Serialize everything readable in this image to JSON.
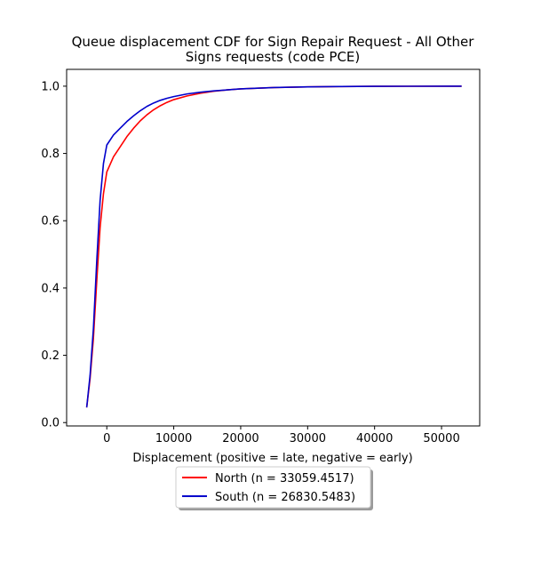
{
  "chart_data": {
    "type": "line",
    "title_lines": [
      "Queue displacement CDF for Sign Repair Request - All Other",
      "Signs  requests (code PCE)"
    ],
    "xlabel": "Displacement (positive = late, negative = early)",
    "ylabel": "",
    "xlim": [
      -6000,
      55700
    ],
    "ylim": [
      -0.01,
      1.05
    ],
    "xticks": [
      0,
      10000,
      20000,
      30000,
      40000,
      50000
    ],
    "yticks": [
      0.0,
      0.2,
      0.4,
      0.6,
      0.8,
      1.0
    ],
    "xtick_labels": [
      "0",
      "10000",
      "20000",
      "30000",
      "40000",
      "50000"
    ],
    "ytick_labels": [
      "0.0",
      "0.2",
      "0.4",
      "0.6",
      "0.8",
      "1.0"
    ],
    "grid": false,
    "legend_position": "below plot, centered",
    "series": [
      {
        "name": "North (n = 33059.4517)",
        "color": "#ff0000",
        "x": [
          -3000,
          -2500,
          -2000,
          -1500,
          -1000,
          -500,
          0,
          1000,
          2000,
          3000,
          4000,
          5000,
          6000,
          7000,
          8000,
          9000,
          10000,
          12000,
          14000,
          16000,
          18000,
          20000,
          25000,
          30000,
          35000,
          40000,
          45000,
          53000
        ],
        "y": [
          0.045,
          0.13,
          0.25,
          0.42,
          0.58,
          0.68,
          0.745,
          0.79,
          0.82,
          0.85,
          0.875,
          0.897,
          0.915,
          0.93,
          0.942,
          0.952,
          0.96,
          0.971,
          0.979,
          0.985,
          0.989,
          0.992,
          0.996,
          0.998,
          0.999,
          0.9995,
          0.9998,
          1.0
        ]
      },
      {
        "name": "South (n = 26830.5483)",
        "color": "#0000cc",
        "x": [
          -3000,
          -2500,
          -2000,
          -1500,
          -1000,
          -500,
          0,
          1000,
          2000,
          3000,
          4000,
          5000,
          6000,
          7000,
          8000,
          9000,
          10000,
          12000,
          14000,
          16000,
          18000,
          20000,
          25000,
          30000,
          35000,
          40000,
          45000,
          53000
        ],
        "y": [
          0.045,
          0.14,
          0.28,
          0.48,
          0.66,
          0.77,
          0.825,
          0.855,
          0.875,
          0.895,
          0.912,
          0.927,
          0.94,
          0.95,
          0.958,
          0.964,
          0.969,
          0.977,
          0.982,
          0.986,
          0.989,
          0.992,
          0.996,
          0.998,
          0.999,
          0.9995,
          0.9998,
          1.0
        ]
      }
    ]
  }
}
